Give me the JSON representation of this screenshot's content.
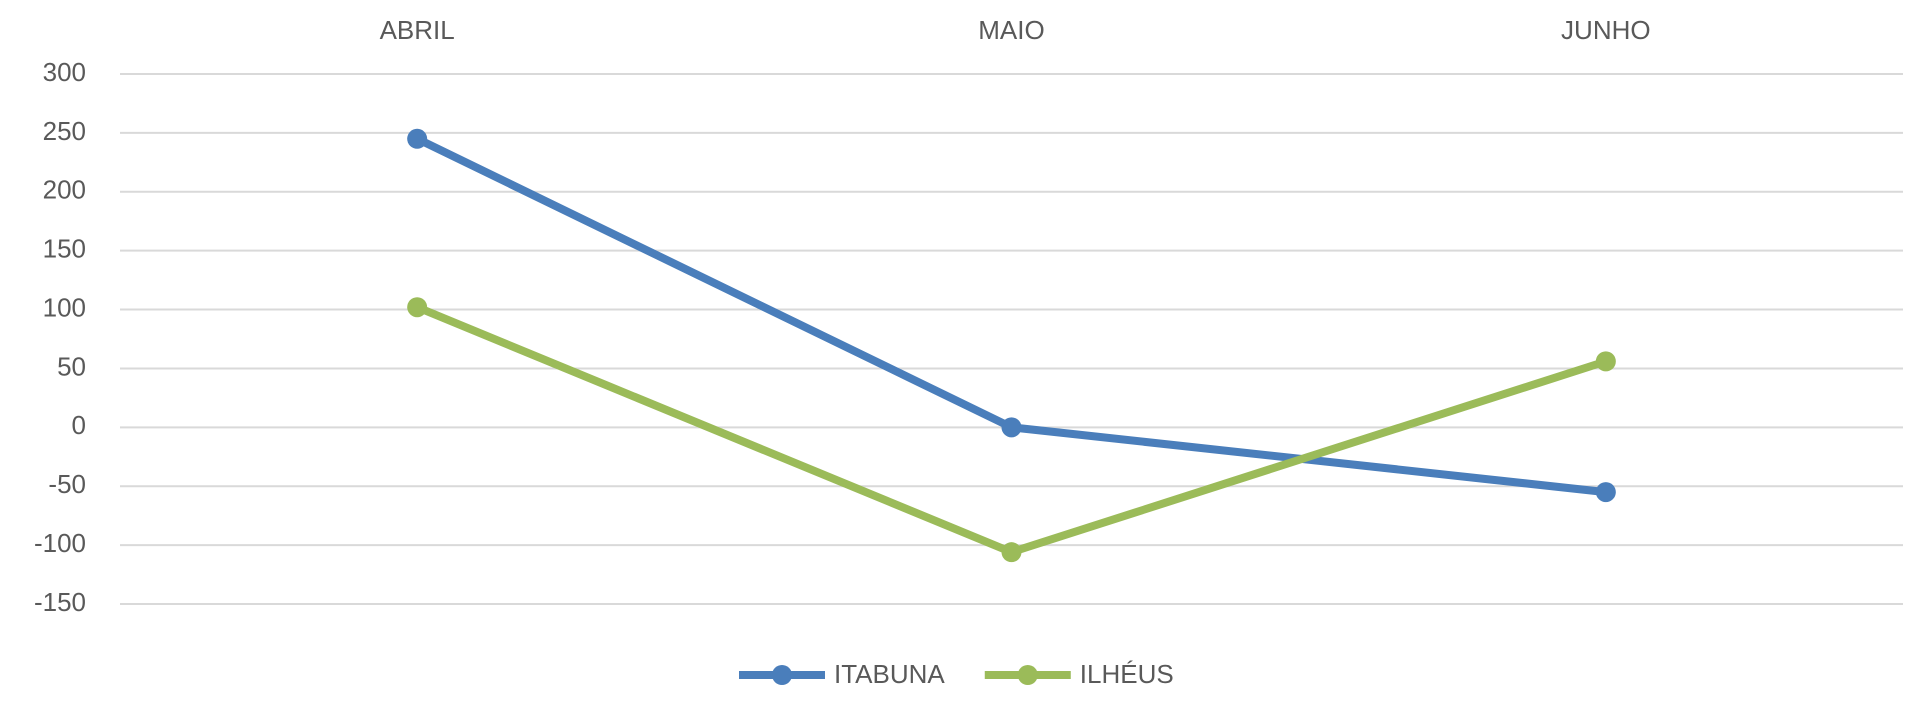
{
  "chart_data": {
    "type": "line",
    "categories": [
      "ABRIL",
      "MAIO",
      "JUNHO"
    ],
    "series": [
      {
        "name": "ITABUNA",
        "color": "#4a7ebb",
        "values": [
          245,
          0,
          -55
        ]
      },
      {
        "name": "ILHÉUS",
        "color": "#9bbb59",
        "values": [
          102,
          -106,
          56
        ]
      }
    ],
    "ylim": [
      -150,
      300
    ],
    "yticks": [
      -150,
      -100,
      -50,
      0,
      50,
      100,
      150,
      200,
      250,
      300
    ],
    "grid": true,
    "legend": "bottom",
    "category_axis": "top"
  }
}
